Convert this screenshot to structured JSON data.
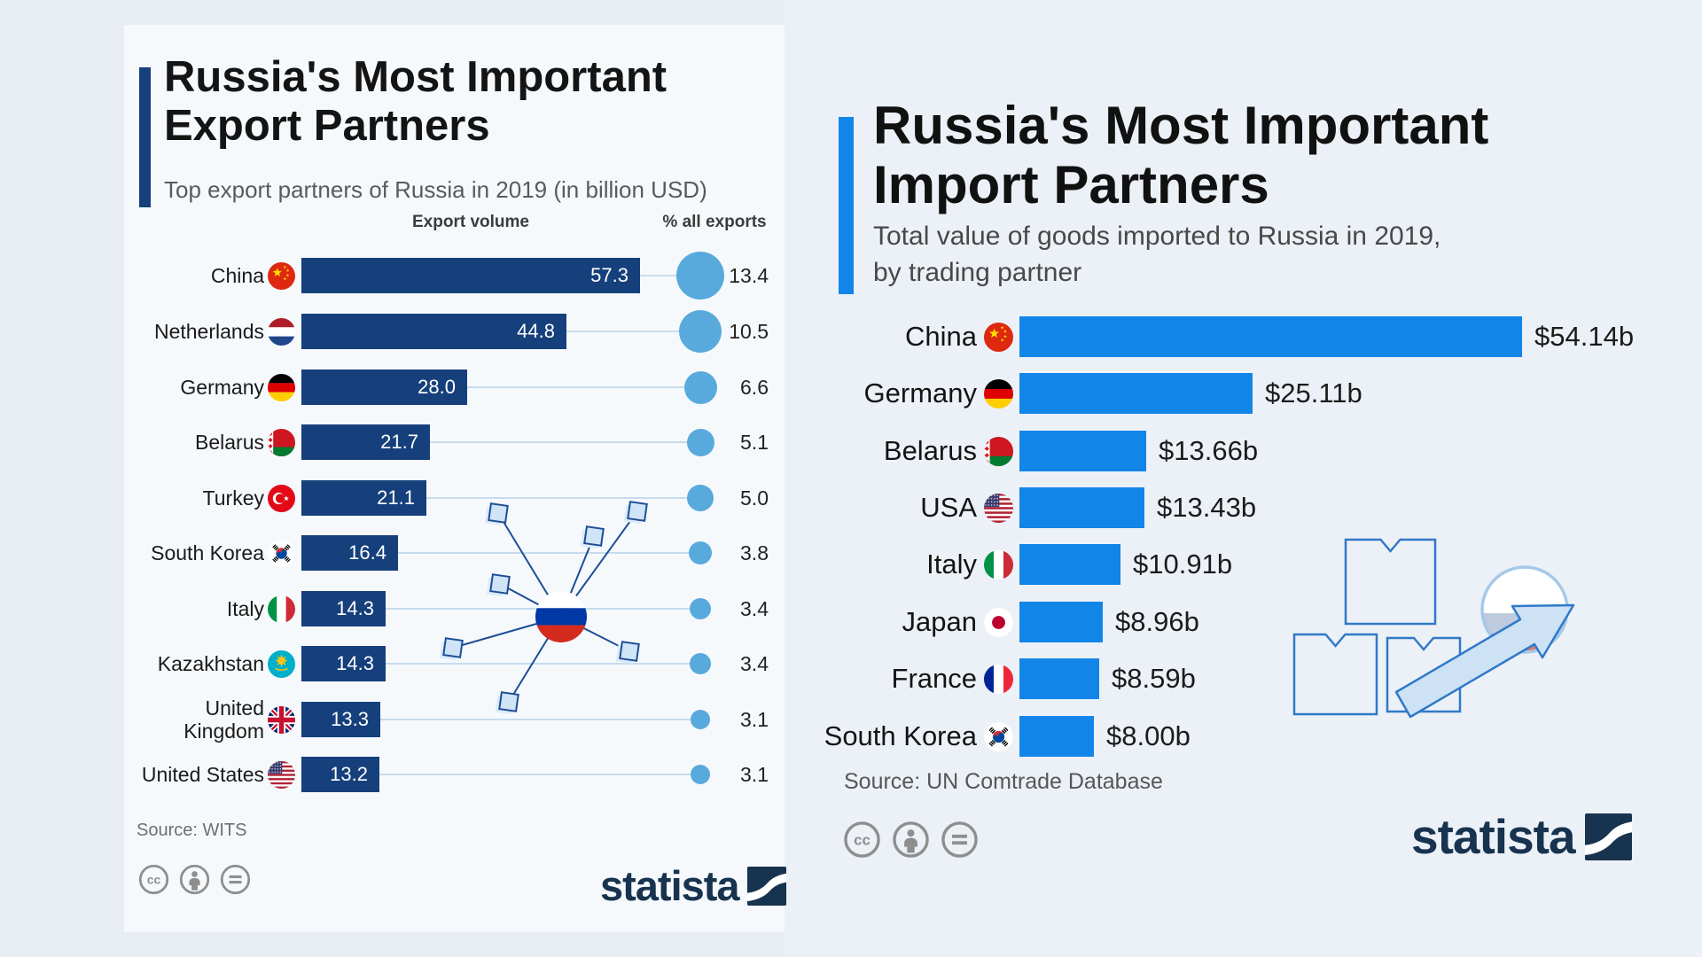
{
  "page": {
    "background_outer": "#e8edf3",
    "background_left_panel": "#f6f9fc",
    "background_right_panel": "#ecf1f7",
    "navy_accent": "#16407c",
    "bright_blue_accent": "#1285e8",
    "bubble_color": "#58a9dc"
  },
  "brand": {
    "wordmark": "statista",
    "color": "#17334f"
  },
  "license_icons": [
    "cc",
    "attribution",
    "no-derivatives"
  ],
  "chart_data": [
    {
      "type": "bar",
      "orientation": "horizontal",
      "title": "Russia's Most Important Export Partners",
      "title_lines": [
        "Russia's Most Important",
        "Export Partners"
      ],
      "subtitle": "Top export partners of Russia in 2019 (in billion USD)",
      "value_axis_label": "Export volume",
      "secondary_axis_label": "% all exports",
      "categories": [
        "China",
        "Netherlands",
        "Germany",
        "Belarus",
        "Turkey",
        "South Korea",
        "Italy",
        "Kazakhstan",
        "United Kingdom",
        "United States"
      ],
      "category_display": [
        "China",
        "Netherlands",
        "Germany",
        "Belarus",
        "Turkey",
        "South Korea",
        "Italy",
        "Kazakhstan",
        "United\nKingdom",
        "United States"
      ],
      "flags": [
        "cn",
        "nl",
        "de",
        "by",
        "tr",
        "kr",
        "it",
        "kz",
        "gb",
        "us"
      ],
      "series": [
        {
          "name": "Export volume",
          "values": [
            57.3,
            44.8,
            28.0,
            21.7,
            21.1,
            16.4,
            14.3,
            14.3,
            13.3,
            13.2
          ],
          "labels": [
            "57.3",
            "44.8",
            "28.0",
            "21.7",
            "21.1",
            "16.4",
            "14.3",
            "14.3",
            "13.3",
            "13.2"
          ]
        },
        {
          "name": "% all exports",
          "values": [
            13.4,
            10.5,
            6.6,
            5.1,
            5.0,
            3.8,
            3.4,
            3.4,
            3.1,
            3.1
          ],
          "labels": [
            "13.4",
            "10.5",
            "6.6",
            "5.1",
            "5.0",
            "3.8",
            "3.4",
            "3.4",
            "3.1",
            "3.1"
          ]
        }
      ],
      "source": "Source: WITS",
      "grid": false,
      "legend_position": "none"
    },
    {
      "type": "bar",
      "orientation": "horizontal",
      "title": "Russia's Most Important Import Partners",
      "title_lines": [
        "Russia's Most Important",
        "Import Partners"
      ],
      "subtitle": "Total value of goods imported to Russia in 2019, by trading partner",
      "subtitle_lines": [
        "Total value of goods imported to Russia in 2019,",
        "by trading partner"
      ],
      "categories": [
        "China",
        "Germany",
        "Belarus",
        "USA",
        "Italy",
        "Japan",
        "France",
        "South Korea"
      ],
      "flags": [
        "cn",
        "de",
        "by",
        "us",
        "it",
        "jp",
        "fr",
        "kr"
      ],
      "values": [
        54.14,
        25.11,
        13.66,
        13.43,
        10.91,
        8.96,
        8.59,
        8.0
      ],
      "labels": [
        "$54.14b",
        "$25.11b",
        "$13.66b",
        "$13.43b",
        "$10.91b",
        "$8.96b",
        "$8.59b",
        "$8.00b"
      ],
      "source": "Source: UN Comtrade Database",
      "grid": false,
      "legend_position": "none"
    }
  ]
}
